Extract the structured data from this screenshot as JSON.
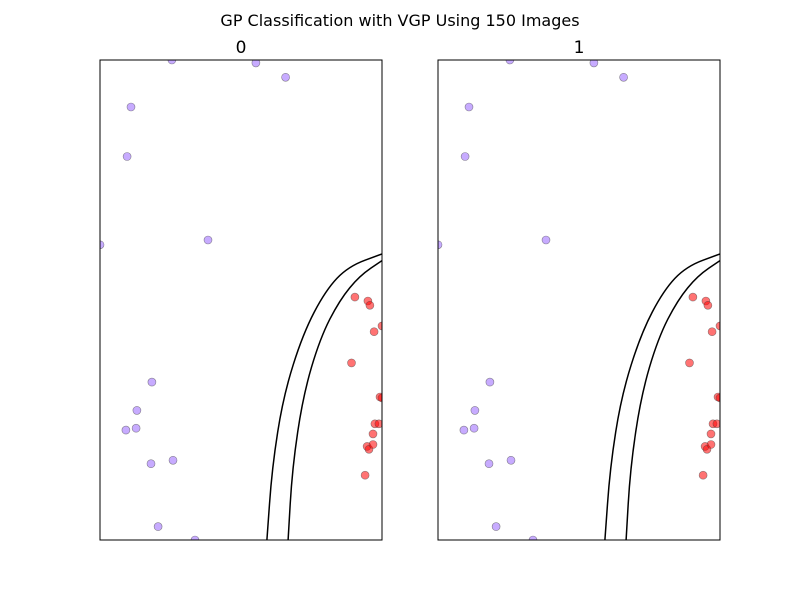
{
  "figure": {
    "title": "GP Classification with VGP Using 150 Images"
  },
  "style": {
    "class0_color": "#9966ff",
    "class1_color": "#ff0000",
    "point_alpha": 0.55,
    "boundary_color": "#000000",
    "axes_color": "#000000"
  },
  "chart_data": [
    {
      "type": "scatter",
      "panel_title": "0",
      "xlabel": "",
      "ylabel": "",
      "xlim": [
        0,
        1
      ],
      "ylim": [
        0,
        1
      ],
      "grid": false,
      "axis_ticks": false,
      "series": [
        {
          "class": 0,
          "color": "#9966ff",
          "points": [
            [
              0.255,
              1.0
            ],
            [
              0.553,
              0.994
            ],
            [
              0.658,
              0.964
            ],
            [
              0.11,
              0.902
            ],
            [
              0.096,
              0.799
            ],
            [
              0.0,
              0.615
            ],
            [
              0.383,
              0.625
            ],
            [
              0.184,
              0.329
            ],
            [
              0.131,
              0.27
            ],
            [
              0.092,
              0.229
            ],
            [
              0.128,
              0.233
            ],
            [
              0.181,
              0.159
            ],
            [
              0.259,
              0.166
            ],
            [
              0.206,
              0.028
            ],
            [
              0.337,
              0.0
            ]
          ]
        },
        {
          "class": 1,
          "color": "#ff0000",
          "points": [
            [
              0.904,
              0.506
            ],
            [
              0.95,
              0.498
            ],
            [
              0.957,
              0.489
            ],
            [
              1.0,
              0.446
            ],
            [
              0.972,
              0.434
            ],
            [
              0.892,
              0.369
            ],
            [
              0.993,
              0.298
            ],
            [
              1.0,
              0.296
            ],
            [
              0.975,
              0.242
            ],
            [
              0.989,
              0.242
            ],
            [
              0.968,
              0.221
            ],
            [
              0.947,
              0.195
            ],
            [
              0.954,
              0.189
            ],
            [
              0.968,
              0.199
            ],
            [
              0.94,
              0.135
            ]
          ]
        }
      ],
      "decision_boundaries": [
        [
          [
            0.592,
            0.0
          ],
          [
            0.61,
            0.15
          ],
          [
            0.65,
            0.3
          ],
          [
            0.72,
            0.43
          ],
          [
            0.8,
            0.52
          ],
          [
            0.88,
            0.57
          ],
          [
            1.0,
            0.596
          ]
        ],
        [
          [
            0.667,
            0.0
          ],
          [
            0.682,
            0.15
          ],
          [
            0.72,
            0.3
          ],
          [
            0.78,
            0.42
          ],
          [
            0.85,
            0.5
          ],
          [
            0.92,
            0.55
          ],
          [
            1.0,
            0.582
          ]
        ]
      ]
    },
    {
      "type": "scatter",
      "panel_title": "1",
      "xlabel": "",
      "ylabel": "",
      "xlim": [
        0,
        1
      ],
      "ylim": [
        0,
        1
      ],
      "grid": false,
      "axis_ticks": false,
      "series": [
        {
          "class": 0,
          "color": "#9966ff",
          "points": [
            [
              0.255,
              1.0
            ],
            [
              0.553,
              0.994
            ],
            [
              0.658,
              0.964
            ],
            [
              0.11,
              0.902
            ],
            [
              0.096,
              0.799
            ],
            [
              0.0,
              0.615
            ],
            [
              0.383,
              0.625
            ],
            [
              0.184,
              0.329
            ],
            [
              0.131,
              0.27
            ],
            [
              0.092,
              0.229
            ],
            [
              0.128,
              0.233
            ],
            [
              0.181,
              0.159
            ],
            [
              0.259,
              0.166
            ],
            [
              0.206,
              0.028
            ],
            [
              0.337,
              0.0
            ]
          ]
        },
        {
          "class": 1,
          "color": "#ff0000",
          "points": [
            [
              0.904,
              0.506
            ],
            [
              0.95,
              0.498
            ],
            [
              0.957,
              0.489
            ],
            [
              1.0,
              0.446
            ],
            [
              0.972,
              0.434
            ],
            [
              0.892,
              0.369
            ],
            [
              0.993,
              0.298
            ],
            [
              1.0,
              0.296
            ],
            [
              0.975,
              0.242
            ],
            [
              0.989,
              0.242
            ],
            [
              0.968,
              0.221
            ],
            [
              0.947,
              0.195
            ],
            [
              0.954,
              0.189
            ],
            [
              0.968,
              0.199
            ],
            [
              0.94,
              0.135
            ]
          ]
        }
      ],
      "decision_boundaries": [
        [
          [
            0.592,
            0.0
          ],
          [
            0.61,
            0.15
          ],
          [
            0.65,
            0.3
          ],
          [
            0.72,
            0.43
          ],
          [
            0.8,
            0.52
          ],
          [
            0.88,
            0.57
          ],
          [
            1.0,
            0.596
          ]
        ],
        [
          [
            0.667,
            0.0
          ],
          [
            0.682,
            0.15
          ],
          [
            0.72,
            0.3
          ],
          [
            0.78,
            0.42
          ],
          [
            0.85,
            0.5
          ],
          [
            0.92,
            0.55
          ],
          [
            1.0,
            0.582
          ]
        ]
      ]
    }
  ]
}
